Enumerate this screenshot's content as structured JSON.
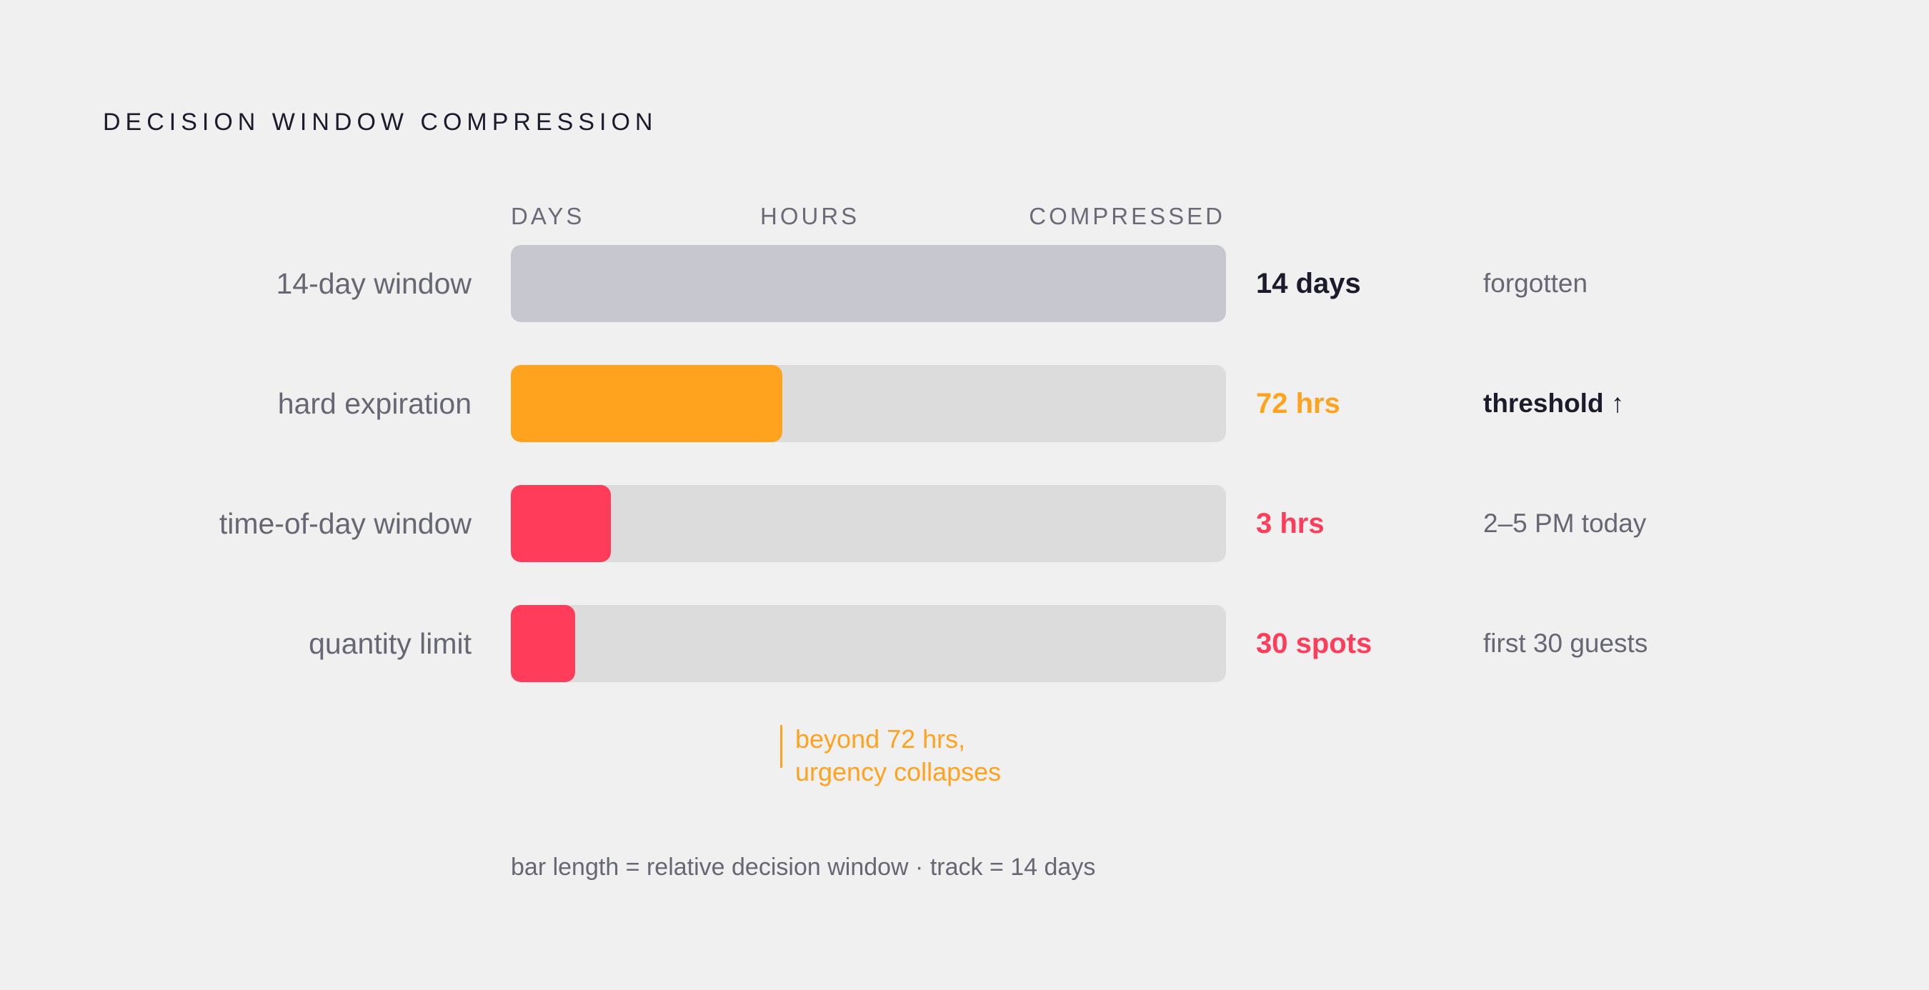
{
  "chart_data": {
    "type": "bar",
    "orientation": "horizontal",
    "title": "DECISION WINDOW COMPRESSION",
    "scale_labels": [
      "DAYS",
      "HOURS",
      "COMPRESSED"
    ],
    "categories": [
      "14-day window",
      "hard expiration",
      "time-of-day window",
      "quantity limit"
    ],
    "values": [
      1.0,
      0.38,
      0.14,
      0.09
    ],
    "value_labels": [
      "14 days",
      "72 hrs",
      "3 hrs",
      "30 spots"
    ],
    "notes": [
      "forgotten",
      "threshold ↑",
      "2–5 PM today",
      "first 30 guests"
    ],
    "annotation": [
      "beyond 72 hrs,",
      "urgency collapses"
    ],
    "footnote": "bar length = relative decision window · track = 14 days",
    "xlim": [
      0,
      1
    ],
    "grid": false,
    "legend": "none"
  },
  "colors": {
    "neutral": "#c7c7cf",
    "accent": "#ffa31f",
    "alert": "#ff3d5a",
    "track": "#dcdcdc",
    "text_dark": "#1b1b2b",
    "text_muted": "#676773"
  },
  "bar_colors": [
    "#c7c7cf",
    "#ffa31f",
    "#ff3d5a",
    "#ff3d5a"
  ],
  "value_colors": [
    "#1b1b2b",
    "#ffa31f",
    "#ff3d5a",
    "#ff3d5a"
  ]
}
